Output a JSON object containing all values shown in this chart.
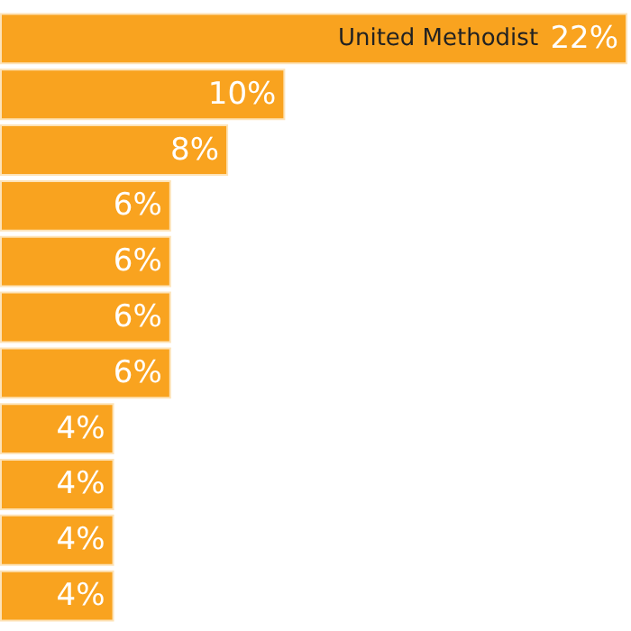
{
  "chart_data": {
    "type": "bar",
    "orientation": "horizontal",
    "categories": [
      "United Methodist",
      null,
      null,
      null,
      null,
      null,
      null,
      null,
      null,
      null,
      null
    ],
    "values": [
      22,
      10,
      8,
      6,
      6,
      6,
      6,
      4,
      4,
      4,
      4
    ],
    "value_labels": [
      "22%",
      "10%",
      "8%",
      "6%",
      "6%",
      "6%",
      "6%",
      "4%",
      "4%",
      "4%",
      "4%"
    ],
    "color": "#f9a31f"
  }
}
